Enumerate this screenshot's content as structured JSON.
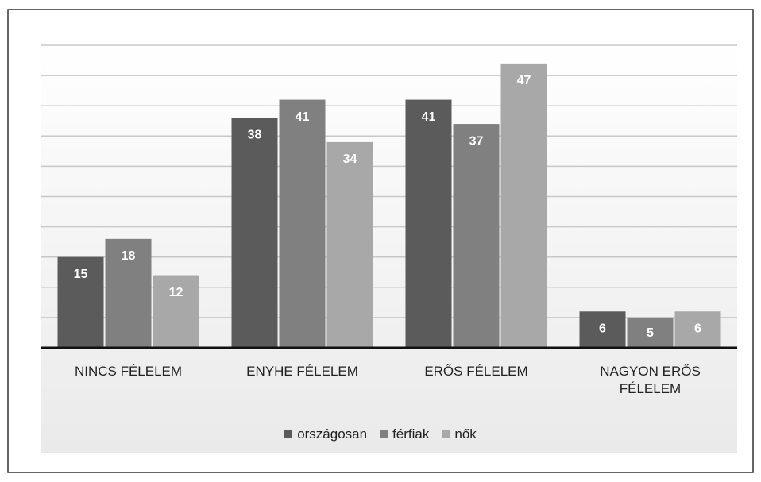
{
  "chart_data": {
    "type": "bar",
    "categories": [
      "NINCS FÉLELEM",
      "ENYHE FÉLELEM",
      "ERŐS FÉLELEM",
      "NAGYON ERŐS FÉLELEM"
    ],
    "series": [
      {
        "name": "országosan",
        "color": "#5b5b5b",
        "values": [
          15,
          38,
          41,
          6
        ]
      },
      {
        "name": "férfiak",
        "color": "#808080",
        "values": [
          18,
          41,
          37,
          5
        ]
      },
      {
        "name": "nők",
        "color": "#a8a8a8",
        "values": [
          12,
          34,
          47,
          6
        ]
      }
    ],
    "ylim": [
      0,
      50
    ],
    "yticks": [
      0,
      5,
      10,
      15,
      20,
      25,
      30,
      35,
      40,
      45,
      50
    ],
    "grid": true,
    "legend": "bottom"
  }
}
